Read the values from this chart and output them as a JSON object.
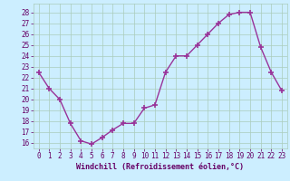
{
  "x": [
    0,
    1,
    2,
    3,
    4,
    5,
    6,
    7,
    8,
    9,
    10,
    11,
    12,
    13,
    14,
    15,
    16,
    17,
    18,
    19,
    20,
    21,
    22,
    23
  ],
  "y": [
    22.5,
    21.0,
    20.0,
    17.8,
    16.2,
    15.9,
    16.5,
    17.2,
    17.8,
    17.8,
    19.2,
    19.5,
    22.5,
    24.0,
    24.0,
    25.0,
    26.0,
    27.0,
    27.8,
    28.0,
    28.0,
    24.8,
    22.5,
    20.8
  ],
  "line_color": "#993399",
  "marker": "+",
  "marker_size": 4,
  "marker_linewidth": 1.2,
  "line_width": 1.0,
  "bg_color": "#cceeff",
  "grid_color": "#aaccbb",
  "xlabel": "Windchill (Refroidissement éolien,°C)",
  "xlabel_color": "#660066",
  "xlabel_fontsize": 6.0,
  "tick_color": "#660066",
  "tick_fontsize": 5.5,
  "ylim": [
    15.5,
    28.8
  ],
  "xlim": [
    -0.5,
    23.5
  ]
}
